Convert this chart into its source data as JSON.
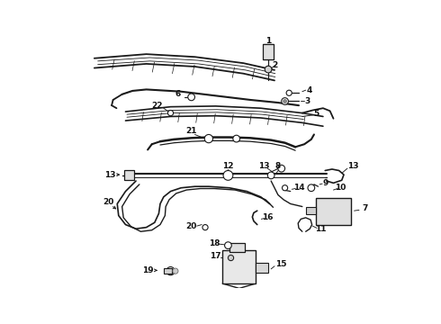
{
  "bg_color": "#ffffff",
  "line_color": "#1a1a1a",
  "text_color": "#111111",
  "fig_width": 4.9,
  "fig_height": 3.6,
  "dpi": 100
}
